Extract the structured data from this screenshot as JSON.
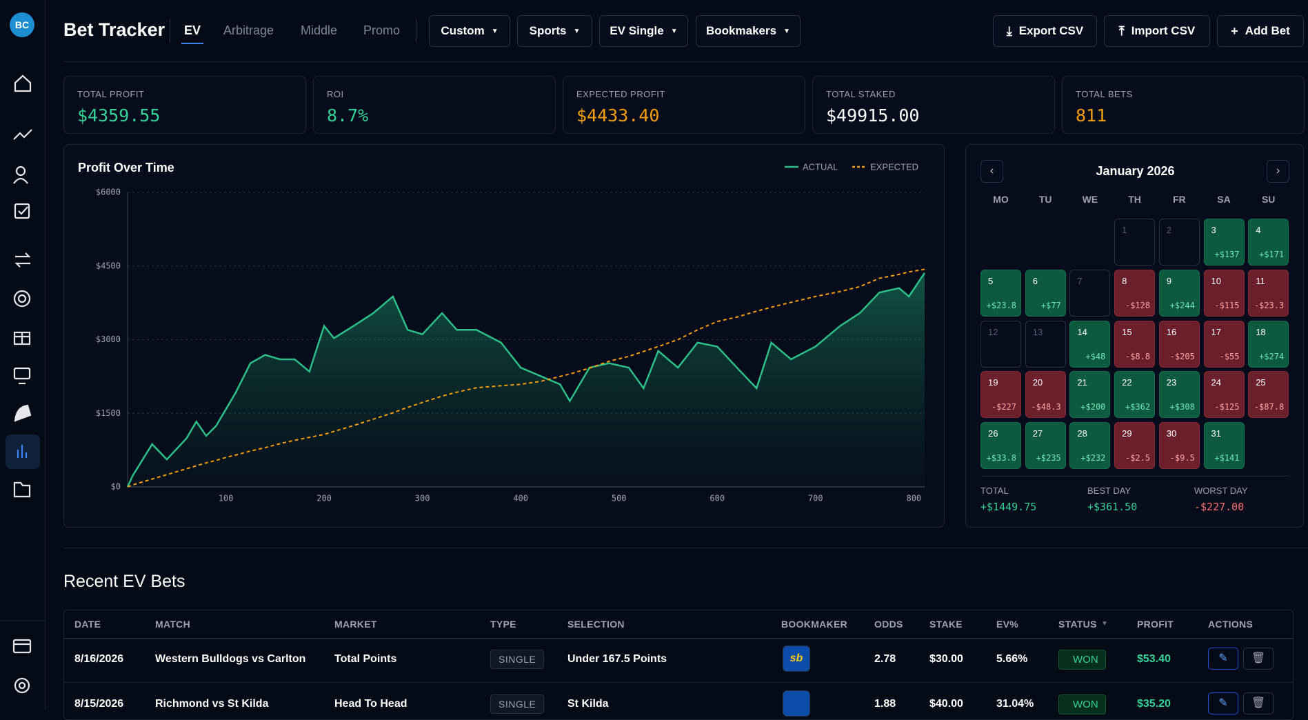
{
  "sidebar": {
    "logo": "BC"
  },
  "header": {
    "title": "Bet Tracker",
    "tabs": [
      "EV",
      "Arbitrage",
      "Middle",
      "Promo"
    ],
    "filters": [
      "Custom",
      "Sports",
      "EV Single",
      "Bookmakers"
    ],
    "buttons": [
      "Export CSV",
      "Import CSV",
      "Add Bet"
    ]
  },
  "stats": [
    {
      "label": "TOTAL PROFIT",
      "value": "$4359.55",
      "color": "#34d399"
    },
    {
      "label": "ROI",
      "value": "8.7%",
      "color": "#34d399"
    },
    {
      "label": "EXPECTED PROFIT",
      "value": "$4433.40",
      "color": "#f59e0b"
    },
    {
      "label": "TOTAL STAKED",
      "value": "$49915.00",
      "color": "#ffffff"
    },
    {
      "label": "TOTAL BETS",
      "value": "811",
      "color": "#f59e0b"
    }
  ],
  "chart_data": {
    "type": "line",
    "title": "Profit Over Time",
    "x": [
      0,
      5,
      25,
      40,
      60,
      70,
      80,
      90,
      100,
      110,
      125,
      140,
      155,
      170,
      185,
      200,
      210,
      230,
      250,
      270,
      285,
      300,
      320,
      335,
      355,
      380,
      400,
      420,
      440,
      450,
      470,
      490,
      510,
      525,
      540,
      560,
      580,
      600,
      620,
      640,
      655,
      675,
      700,
      725,
      745,
      765,
      785,
      795,
      811
    ],
    "series": [
      {
        "name": "ACTUAL",
        "color": "#2dbf8a",
        "values": [
          0,
          220,
          870,
          560,
          990,
          1330,
          1040,
          1240,
          1580,
          1920,
          2520,
          2690,
          2600,
          2600,
          2350,
          3280,
          3030,
          3280,
          3540,
          3880,
          3200,
          3110,
          3540,
          3200,
          3200,
          2940,
          2430,
          2260,
          2090,
          1750,
          2430,
          2520,
          2430,
          2010,
          2770,
          2430,
          2940,
          2860,
          2430,
          2010,
          2940,
          2600,
          2860,
          3280,
          3540,
          3960,
          4050,
          3880,
          4360
        ]
      },
      {
        "name": "EXPECTED",
        "color": "#f59e0b",
        "values": [
          0,
          40,
          160,
          250,
          370,
          430,
          490,
          540,
          600,
          650,
          730,
          800,
          880,
          950,
          1010,
          1070,
          1130,
          1250,
          1380,
          1510,
          1620,
          1720,
          1850,
          1930,
          2020,
          2060,
          2090,
          2150,
          2250,
          2300,
          2420,
          2560,
          2660,
          2760,
          2860,
          3000,
          3200,
          3370,
          3460,
          3580,
          3660,
          3760,
          3880,
          3980,
          4080,
          4250,
          4330,
          4380,
          4433
        ]
      }
    ],
    "xlim": [
      0,
      811
    ],
    "xticks": [
      100,
      200,
      300,
      400,
      500,
      600,
      700,
      800
    ],
    "ylim": [
      0,
      6000
    ],
    "yticks": [
      {
        "value": 0,
        "label": "$0"
      },
      {
        "value": 1500,
        "label": "$1500"
      },
      {
        "value": 3000,
        "label": "$3000"
      },
      {
        "value": 4500,
        "label": "$4500"
      },
      {
        "value": 6000,
        "label": "$6000"
      }
    ],
    "grid": true
  },
  "calendar": {
    "month": "January 2026",
    "weekdays": [
      "MO",
      "TU",
      "WE",
      "TH",
      "FR",
      "SA",
      "SU"
    ],
    "days": [
      {
        "day": "1"
      },
      {
        "day": "2"
      },
      {
        "day": "3",
        "profit": "+$137"
      },
      {
        "day": "4",
        "profit": "+$171"
      },
      {
        "day": "5",
        "profit": "+$23.8"
      },
      {
        "day": "6",
        "profit": "+$77"
      },
      {
        "day": "7"
      },
      {
        "day": "8",
        "profit": "-$128"
      },
      {
        "day": "9",
        "profit": "+$244"
      },
      {
        "day": "10",
        "profit": "-$115"
      },
      {
        "day": "11",
        "profit": "-$23.3"
      },
      {
        "day": "12"
      },
      {
        "day": "13"
      },
      {
        "day": "14",
        "profit": "+$48"
      },
      {
        "day": "15",
        "profit": "-$8.8"
      },
      {
        "day": "16",
        "profit": "-$205"
      },
      {
        "day": "17",
        "profit": "-$55"
      },
      {
        "day": "18",
        "profit": "+$274"
      },
      {
        "day": "19",
        "profit": "-$227"
      },
      {
        "day": "20",
        "profit": "-$48.3"
      },
      {
        "day": "21",
        "profit": "+$200"
      },
      {
        "day": "22",
        "profit": "+$362"
      },
      {
        "day": "23",
        "profit": "+$308"
      },
      {
        "day": "24",
        "profit": "-$125"
      },
      {
        "day": "25",
        "profit": "-$87.8"
      },
      {
        "day": "26",
        "profit": "+$33.8"
      },
      {
        "day": "27",
        "profit": "+$235"
      },
      {
        "day": "28",
        "profit": "+$232"
      },
      {
        "day": "29",
        "profit": "-$2.5"
      },
      {
        "day": "30",
        "profit": "-$9.5"
      },
      {
        "day": "31",
        "profit": "+$141"
      }
    ],
    "summary": [
      {
        "label": "TOTAL",
        "value": "+$1449.75"
      },
      {
        "label": "BEST DAY",
        "value": "+$361.50"
      },
      {
        "label": "WORST DAY",
        "value": "-$227.00"
      }
    ]
  },
  "table": {
    "title": "Recent EV Bets",
    "columns": [
      "DATE",
      "MATCH",
      "MARKET",
      "TYPE",
      "SELECTION",
      "BOOKMAKER",
      "ODDS",
      "STAKE",
      "EV%",
      "STATUS",
      "PROFIT",
      "ACTIONS"
    ],
    "rows": [
      [
        "8/16/2026",
        "Western Bulldogs vs Carlton",
        "Total Points",
        "SINGLE",
        "Under 167.5 Points",
        "sb",
        "2.78",
        "$30.00",
        "5.66%",
        "WON",
        "$53.40"
      ],
      [
        "8/15/2026",
        "Richmond vs St Kilda",
        "Head To Head",
        "SINGLE",
        "St Kilda",
        "",
        "1.88",
        "$40.00",
        "31.04%",
        "WON",
        "$35.20"
      ]
    ]
  }
}
